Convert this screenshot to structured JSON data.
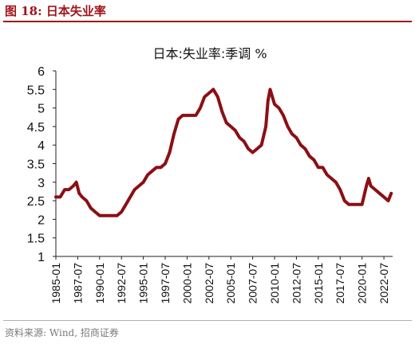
{
  "figure": {
    "label": "图 18:  日本失业率",
    "source": "资料来源: Wind, 招商证券"
  },
  "chart_data": {
    "type": "line",
    "title": "日本:失业率:季调 %",
    "xlabel": "",
    "ylabel": "",
    "ylim": [
      1,
      6
    ],
    "yticks": [
      1,
      1.5,
      2,
      2.5,
      3,
      3.5,
      4,
      4.5,
      5,
      5.5,
      6
    ],
    "xticks": [
      "1985-01",
      "1987-07",
      "1990-01",
      "1992-07",
      "1995-01",
      "1997-07",
      "2000-01",
      "2002-07",
      "2005-01",
      "2007-07",
      "2010-01",
      "2012-07",
      "2015-01",
      "2017-07",
      "2020-01",
      "2022-07"
    ],
    "grid": false,
    "line_color": "#8b0f14",
    "series": [
      {
        "name": "",
        "x": [
          "1985-01",
          "1985-07",
          "1986-01",
          "1986-07",
          "1987-01",
          "1987-05",
          "1987-09",
          "1988-01",
          "1988-07",
          "1989-01",
          "1989-07",
          "1990-01",
          "1990-07",
          "1991-01",
          "1991-07",
          "1992-01",
          "1992-07",
          "1993-01",
          "1993-07",
          "1994-01",
          "1994-07",
          "1995-01",
          "1995-07",
          "1996-01",
          "1996-07",
          "1997-01",
          "1997-07",
          "1998-01",
          "1998-07",
          "1999-01",
          "1999-07",
          "2000-01",
          "2000-07",
          "2001-01",
          "2001-07",
          "2002-01",
          "2002-07",
          "2003-01",
          "2003-07",
          "2004-01",
          "2004-07",
          "2005-01",
          "2005-07",
          "2006-01",
          "2006-07",
          "2007-01",
          "2007-07",
          "2008-01",
          "2008-07",
          "2009-01",
          "2009-04",
          "2009-07",
          "2010-01",
          "2010-07",
          "2011-01",
          "2011-07",
          "2012-01",
          "2012-07",
          "2013-01",
          "2013-07",
          "2014-01",
          "2014-07",
          "2015-01",
          "2015-07",
          "2016-01",
          "2016-07",
          "2017-01",
          "2017-07",
          "2018-01",
          "2018-07",
          "2019-01",
          "2019-07",
          "2020-01",
          "2020-07",
          "2020-10",
          "2021-01",
          "2021-07",
          "2022-01",
          "2022-07",
          "2023-01",
          "2023-05"
        ],
        "values": [
          2.6,
          2.6,
          2.8,
          2.8,
          2.9,
          3.0,
          2.7,
          2.6,
          2.5,
          2.3,
          2.2,
          2.1,
          2.1,
          2.1,
          2.1,
          2.1,
          2.2,
          2.4,
          2.6,
          2.8,
          2.9,
          3.0,
          3.2,
          3.3,
          3.4,
          3.4,
          3.5,
          3.8,
          4.3,
          4.7,
          4.8,
          4.8,
          4.8,
          4.8,
          5.0,
          5.3,
          5.4,
          5.5,
          5.3,
          4.9,
          4.6,
          4.5,
          4.4,
          4.2,
          4.1,
          3.9,
          3.8,
          3.9,
          4.0,
          4.5,
          5.2,
          5.5,
          5.1,
          5.0,
          4.8,
          4.5,
          4.3,
          4.2,
          4.0,
          3.9,
          3.7,
          3.6,
          3.4,
          3.4,
          3.2,
          3.1,
          3.0,
          2.8,
          2.5,
          2.4,
          2.4,
          2.4,
          2.4,
          2.9,
          3.1,
          2.9,
          2.8,
          2.7,
          2.6,
          2.5,
          2.7
        ]
      }
    ]
  }
}
